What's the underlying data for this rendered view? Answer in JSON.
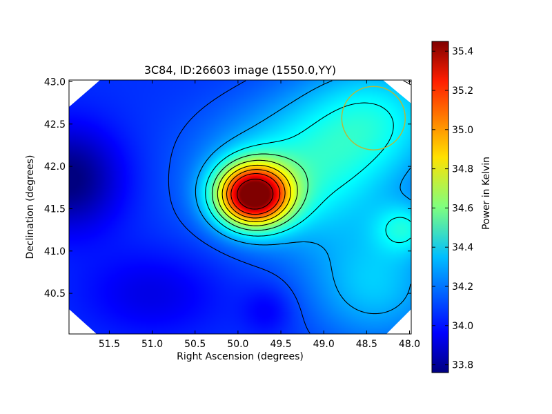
{
  "chart_data": {
    "type": "heatmap",
    "title": "3C84, ID:26603 image (1550.0,YY)",
    "xlabel": "Right Ascension (degrees)",
    "ylabel": "Declination (degrees)",
    "colorbar_label": "Power in Kelvin",
    "x_ticks": [
      "51.5",
      "51.0",
      "50.5",
      "50.0",
      "49.5",
      "49.0",
      "48.5",
      "48.0"
    ],
    "x_tick_values": [
      51.5,
      51.0,
      50.5,
      50.0,
      49.5,
      49.0,
      48.5,
      48.0
    ],
    "y_ticks": [
      "43.0",
      "42.5",
      "42.0",
      "41.5",
      "41.0",
      "40.5"
    ],
    "y_tick_values": [
      43.0,
      42.5,
      42.0,
      41.5,
      41.0,
      40.5
    ],
    "xlim": [
      51.97,
      47.98
    ],
    "ylim": [
      40.02,
      43.02
    ],
    "colorbar_ticks": [
      "35.4",
      "35.2",
      "35.0",
      "34.8",
      "34.6",
      "34.4",
      "34.2",
      "34.0",
      "33.8"
    ],
    "colorbar_tick_values": [
      35.4,
      35.2,
      35.0,
      34.8,
      34.6,
      34.4,
      34.2,
      34.0,
      33.8
    ],
    "value_range": [
      33.76,
      35.45
    ],
    "colormap": "jet",
    "peak": {
      "ra": 49.82,
      "dec": 41.66,
      "value": 35.43
    },
    "secondary_peak": {
      "ra": 48.05,
      "dec": 41.27,
      "value": 34.55
    },
    "minimum": {
      "ra": 51.97,
      "dec": 41.85,
      "value": 33.85
    },
    "contour_levels": [
      34.1,
      34.25,
      34.4,
      34.55,
      34.7,
      34.85,
      35.0,
      35.15,
      35.35
    ],
    "beam_circle": {
      "ra": 48.42,
      "dec": 42.57,
      "radius_deg": 0.37,
      "color": "#b5b83a"
    }
  }
}
